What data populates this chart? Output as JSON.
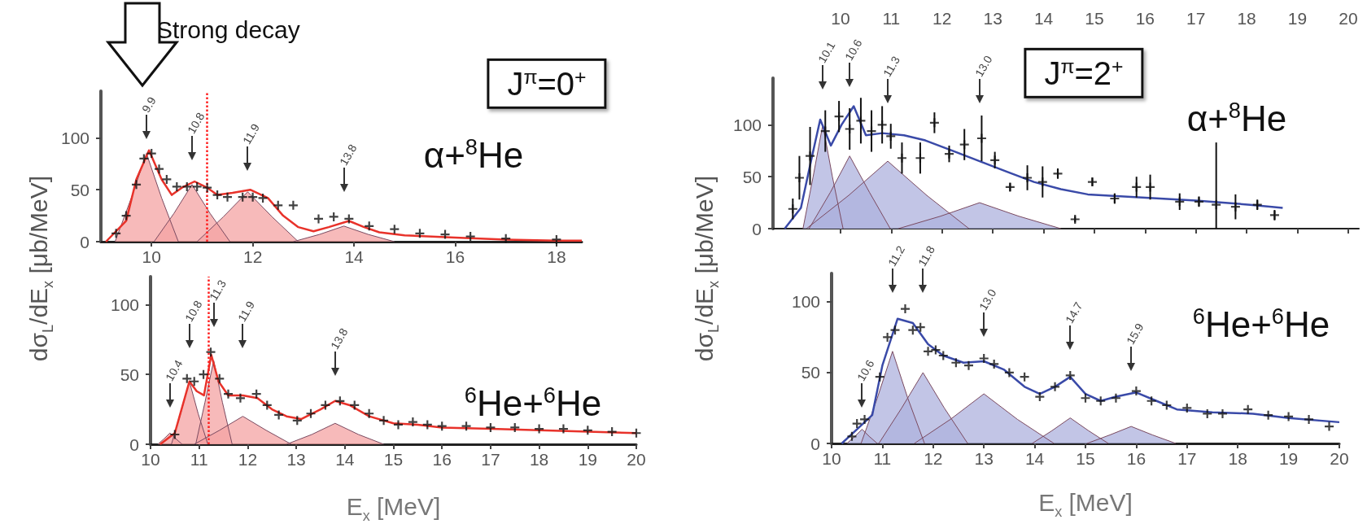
{
  "chart_data": [
    {
      "type": "line",
      "ylabel": "dσ$_{L}$/dE$_{x}$ [μb/MeV]",
      "xlim": [
        9,
        18.5
      ],
      "xticks": [
        10,
        12,
        14,
        16,
        18
      ],
      "ylim": [
        0,
        145
      ],
      "yticks": [
        0,
        50,
        100
      ],
      "annotations": [
        "J$^{π}$=0$^{+}$",
        "α+$^{8}$He",
        "Strong decay",
        "9.9",
        "10.8",
        "11.9",
        "13.8"
      ],
      "ref_lines": [
        {
          "axis": "x",
          "value": 11.1,
          "color": "#ff2020",
          "line_style": "dotted"
        }
      ],
      "series": [
        {
          "type": "area",
          "color": "#f4a3a3",
          "x": [
            9.28,
            9.6,
            9.9,
            10.2,
            10.53
          ],
          "values": [
            0,
            42,
            85,
            42,
            0
          ]
        },
        {
          "type": "area",
          "color": "#f4a3a3",
          "x": [
            10.05,
            10.44,
            10.8,
            11.16,
            11.55
          ],
          "values": [
            0,
            27,
            55,
            27,
            0
          ]
        },
        {
          "type": "area",
          "color": "#f4a3a3",
          "x": [
            10.9,
            11.42,
            11.9,
            12.38,
            12.9
          ],
          "values": [
            0,
            24,
            48,
            24,
            0
          ]
        },
        {
          "type": "area",
          "color": "#f4a3a3",
          "x": [
            12.8,
            13.32,
            13.8,
            14.28,
            14.8
          ],
          "values": [
            0,
            7,
            15,
            7,
            0
          ]
        },
        {
          "color": "#e8322a",
          "x": [
            9.1,
            9.5,
            9.7,
            9.95,
            10.2,
            10.4,
            10.6,
            10.85,
            11.1,
            11.3,
            11.6,
            11.95,
            12.3,
            12.6,
            12.9,
            13.2,
            13.5,
            13.9,
            14.2,
            14.5,
            15,
            16,
            17,
            18,
            18.5
          ],
          "values": [
            0,
            20,
            60,
            88,
            60,
            45,
            52,
            58,
            52,
            45,
            47,
            50,
            42,
            25,
            14,
            10,
            14,
            20,
            14,
            9,
            6,
            4,
            2,
            1,
            1
          ]
        },
        {
          "type": "scatter",
          "color": "#111111",
          "marker": "cross",
          "x": [
            9.3,
            9.5,
            9.7,
            9.85,
            10.0,
            10.15,
            10.3,
            10.5,
            10.7,
            10.9,
            11.1,
            11.3,
            11.5,
            11.8,
            12.0,
            12.2,
            12.5,
            12.8,
            13.3,
            13.6,
            13.9,
            14.3,
            14.8,
            15.3,
            15.8,
            16.3,
            17,
            18
          ],
          "values": [
            8,
            25,
            55,
            80,
            85,
            70,
            60,
            53,
            53,
            53,
            52,
            45,
            43,
            43,
            43,
            42,
            35,
            35,
            22,
            24,
            22,
            15,
            12,
            8,
            7,
            5,
            3,
            2
          ]
        }
      ]
    },
    {
      "type": "line",
      "ylabel": "dσ$_{L}$/dE$_{x}$ [μb/MeV]",
      "xlim": [
        8.67,
        20.21
      ],
      "xticks": [
        10,
        11,
        12,
        13,
        14,
        15,
        16,
        17,
        18,
        19,
        20
      ],
      "ylim": [
        0,
        145
      ],
      "yticks": [
        0,
        50,
        100
      ],
      "annotations": [
        "J$^{π}$=2$^{+}$",
        "α+$^{8}$He",
        "10.1",
        "10.6",
        "11.3",
        "13.0"
      ],
      "series": [
        {
          "type": "area",
          "color": "#aeb2dd",
          "x": [
            9.26,
            9.46,
            9.65,
            9.84,
            10.05
          ],
          "values": [
            0,
            50,
            100,
            50,
            0
          ]
        },
        {
          "type": "area",
          "color": "#aeb2dd",
          "x": [
            9.38,
            9.8,
            10.18,
            10.57,
            10.98
          ],
          "values": [
            0,
            35,
            70,
            35,
            0
          ]
        },
        {
          "type": "area",
          "color": "#aeb2dd",
          "x": [
            9.33,
            10.16,
            10.93,
            11.7,
            12.53
          ],
          "values": [
            0,
            32,
            65,
            32,
            0
          ]
        },
        {
          "type": "area",
          "color": "#aeb2dd",
          "x": [
            11.14,
            11.97,
            12.74,
            13.51,
            14.34
          ],
          "values": [
            0,
            12,
            25,
            12,
            0
          ]
        },
        {
          "color": "#3a4aa8",
          "x": [
            8.9,
            9.22,
            9.44,
            9.6,
            9.81,
            10.02,
            10.26,
            10.5,
            10.82,
            11.25,
            11.67,
            12.21,
            12.74,
            13.27,
            13.81,
            14.34,
            14.87,
            15.94,
            17.0,
            18.07,
            18.71
          ],
          "values": [
            0,
            20,
            70,
            105,
            80,
            100,
            118,
            90,
            92,
            90,
            85,
            75,
            65,
            55,
            45,
            38,
            33,
            30,
            27,
            23,
            20
          ]
        },
        {
          "type": "scatter",
          "color": "#111111",
          "marker": "cross",
          "x": [
            9.06,
            9.19,
            9.4,
            9.7,
            9.97,
            10.18,
            10.4,
            10.61,
            10.82,
            10.99,
            11.21,
            11.57,
            11.85,
            12.14,
            12.44,
            12.78,
            13.04,
            13.34,
            13.68,
            13.98,
            14.28,
            14.62,
            14.96,
            15.4,
            15.83,
            16.1,
            16.68,
            17.06,
            17.4,
            17.78,
            18.21,
            18.55
          ],
          "values": [
            19,
            49,
            70,
            94,
            108,
            96,
            104,
            94,
            100,
            89,
            68,
            68,
            102,
            72,
            81,
            87,
            66,
            40,
            49,
            45,
            53,
            9,
            45,
            29,
            40,
            40,
            26,
            26,
            23,
            21,
            23,
            13
          ],
          "errors": [
            10,
            21,
            28,
            20,
            15,
            20,
            22,
            20,
            18,
            12,
            15,
            15,
            10,
            8,
            15,
            22,
            8,
            4,
            12,
            15,
            5,
            3,
            4,
            5,
            10,
            12,
            8,
            5,
            [
              0,
              83
            ],
            12,
            5,
            5
          ]
        }
      ]
    },
    {
      "type": "line",
      "xlabel": "E$_{x}$ [MeV]",
      "xlim": [
        10,
        20
      ],
      "xticks": [
        10,
        11,
        12,
        13,
        14,
        15,
        16,
        17,
        18,
        19,
        20
      ],
      "ylim": [
        0,
        120
      ],
      "yticks": [
        0,
        50,
        100
      ],
      "annotations": [
        "$^{6}$He+$^{6}$He",
        "10.4",
        "10.8",
        "11.3",
        "11.9",
        "13.8"
      ],
      "ref_lines": [
        {
          "axis": "x",
          "value": 11.2,
          "color": "#ff2020",
          "line_style": "dotted"
        }
      ],
      "series": [
        {
          "type": "area",
          "color": "#f4a3a3",
          "x": [
            10.15,
            10.28,
            10.4,
            10.52,
            10.65
          ],
          "values": [
            0,
            4,
            8,
            4,
            0
          ]
        },
        {
          "type": "area",
          "color": "#f4a3a3",
          "x": [
            10.43,
            10.62,
            10.8,
            10.98,
            11.18
          ],
          "values": [
            0,
            22,
            45,
            22,
            0
          ]
        },
        {
          "type": "area",
          "color": "#f4a3a3",
          "x": [
            10.93,
            11.12,
            11.3,
            11.48,
            11.68
          ],
          "values": [
            0,
            30,
            60,
            30,
            0
          ]
        },
        {
          "type": "area",
          "color": "#f4a3a3",
          "x": [
            10.9,
            11.42,
            11.9,
            12.38,
            12.9
          ],
          "values": [
            0,
            10,
            20,
            10,
            0
          ]
        },
        {
          "type": "area",
          "color": "#f4a3a3",
          "x": [
            12.8,
            13.32,
            13.8,
            14.28,
            14.8
          ],
          "values": [
            0,
            7,
            15,
            7,
            0
          ]
        },
        {
          "color": "#e8322a",
          "x": [
            10.2,
            10.5,
            10.8,
            10.95,
            11.1,
            11.25,
            11.4,
            11.6,
            11.9,
            12.2,
            12.5,
            12.8,
            13.1,
            13.5,
            13.8,
            14.1,
            14.5,
            15,
            15.5,
            16,
            17,
            18,
            19,
            20
          ],
          "values": [
            0,
            8,
            45,
            38,
            35,
            64,
            45,
            35,
            35,
            33,
            25,
            20,
            18,
            25,
            31,
            28,
            20,
            15,
            14,
            12,
            11,
            10,
            9,
            8
          ]
        },
        {
          "type": "scatter",
          "color": "#111111",
          "marker": "cross",
          "x": [
            10.5,
            10.75,
            10.9,
            11.09,
            11.24,
            11.42,
            11.6,
            11.85,
            12.18,
            12.4,
            12.64,
            13.02,
            13.3,
            13.6,
            13.9,
            14.2,
            14.5,
            14.8,
            15.1,
            15.4,
            15.7,
            16,
            16.5,
            17,
            17.5,
            18,
            18.5,
            19,
            19.5,
            20
          ],
          "values": [
            7,
            47,
            45,
            50,
            66,
            47,
            36,
            33,
            36,
            28,
            21,
            17,
            22,
            28,
            31,
            28,
            22,
            17,
            14,
            16,
            14,
            13,
            13,
            12,
            12,
            11,
            11,
            10,
            9,
            8
          ]
        }
      ]
    },
    {
      "type": "line",
      "xlabel": "E$_{x}$ [MeV]",
      "xlim": [
        10,
        20
      ],
      "xticks": [
        10,
        11,
        12,
        13,
        14,
        15,
        16,
        17,
        18,
        19,
        20
      ],
      "ylim": [
        0,
        120
      ],
      "yticks": [
        0,
        50,
        100
      ],
      "annotations": [
        "$^{6}$He+$^{6}$He",
        "10.6",
        "11.2",
        "11.8",
        "13.0",
        "14.7",
        "15.9"
      ],
      "series": [
        {
          "type": "area",
          "color": "#aeb2dd",
          "x": [
            10.3,
            10.46,
            10.6,
            10.74,
            10.9
          ],
          "values": [
            0,
            5,
            10,
            5,
            0
          ]
        },
        {
          "type": "area",
          "color": "#aeb2dd",
          "x": [
            10.58,
            10.9,
            11.2,
            11.5,
            11.83
          ],
          "values": [
            0,
            32,
            65,
            32,
            0
          ]
        },
        {
          "type": "area",
          "color": "#aeb2dd",
          "x": [
            10.93,
            11.38,
            11.8,
            12.22,
            12.68
          ],
          "values": [
            0,
            25,
            50,
            25,
            0
          ]
        },
        {
          "type": "area",
          "color": "#aeb2dd",
          "x": [
            11.63,
            12.34,
            13,
            13.66,
            14.38
          ],
          "values": [
            0,
            17,
            35,
            17,
            0
          ]
        },
        {
          "type": "area",
          "color": "#aeb2dd",
          "x": [
            13.95,
            14.34,
            14.7,
            15.06,
            15.45
          ],
          "values": [
            0,
            9,
            18,
            9,
            0
          ]
        },
        {
          "type": "area",
          "color": "#aeb2dd",
          "x": [
            15.03,
            15.48,
            15.9,
            16.32,
            16.78
          ],
          "values": [
            0,
            6,
            12,
            6,
            0
          ]
        },
        {
          "color": "#3a4aa8",
          "x": [
            10.2,
            10.5,
            10.8,
            11.0,
            11.3,
            11.6,
            11.9,
            12.2,
            12.6,
            13.0,
            13.4,
            13.8,
            14.1,
            14.4,
            14.7,
            15.0,
            15.3,
            15.6,
            16.0,
            16.4,
            16.8,
            17.5,
            18.3,
            19,
            20
          ],
          "values": [
            0,
            10,
            20,
            55,
            88,
            85,
            70,
            62,
            57,
            58,
            52,
            40,
            35,
            40,
            47,
            35,
            30,
            33,
            36,
            30,
            24,
            22,
            21,
            18,
            15
          ]
        },
        {
          "type": "scatter",
          "color": "#111111",
          "marker": "cross",
          "x": [
            10.4,
            10.5,
            10.65,
            10.95,
            11.1,
            11.25,
            11.45,
            11.6,
            11.75,
            11.9,
            12.05,
            12.2,
            12.45,
            12.7,
            13.0,
            13.2,
            13.5,
            13.8,
            14.1,
            14.4,
            14.7,
            15.0,
            15.3,
            15.6,
            16.0,
            16.3,
            16.6,
            17.0,
            17.4,
            17.7,
            18.2,
            18.6,
            19.0,
            19.4,
            19.8
          ],
          "values": [
            5,
            14,
            17,
            47,
            75,
            80,
            95,
            80,
            82,
            65,
            66,
            62,
            57,
            55,
            60,
            56,
            50,
            47,
            33,
            40,
            48,
            32,
            30,
            32,
            37,
            30,
            27,
            25,
            21,
            21,
            24,
            20,
            19,
            17,
            12
          ]
        }
      ]
    }
  ]
}
